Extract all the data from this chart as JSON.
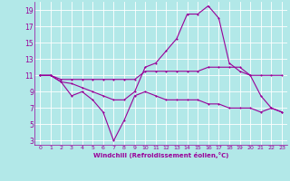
{
  "xlabel": "Windchill (Refroidissement éolien,°C)",
  "bg_color": "#b2e8e8",
  "line_color": "#990099",
  "grid_color": "#ffffff",
  "xlim": [
    -0.5,
    23.5
  ],
  "ylim": [
    2.5,
    20.0
  ],
  "yticks": [
    3,
    5,
    7,
    9,
    11,
    13,
    15,
    17,
    19
  ],
  "xticks": [
    0,
    1,
    2,
    3,
    4,
    5,
    6,
    7,
    8,
    9,
    10,
    11,
    12,
    13,
    14,
    15,
    16,
    17,
    18,
    19,
    20,
    21,
    22,
    23
  ],
  "line1_x": [
    0,
    1,
    2,
    3,
    4,
    5,
    6,
    7,
    8,
    9,
    10,
    11,
    12,
    13,
    14,
    15,
    16,
    17,
    18,
    19,
    20,
    21,
    22,
    23
  ],
  "line1_y": [
    11,
    11,
    10.5,
    10.5,
    10.5,
    10.5,
    10.5,
    10.5,
    10.5,
    10.5,
    11.5,
    11.5,
    11.5,
    11.5,
    11.5,
    11.5,
    12.0,
    12.0,
    12.0,
    12.0,
    11.0,
    11.0,
    11.0,
    11.0
  ],
  "line2_x": [
    0,
    1,
    2,
    3,
    4,
    5,
    6,
    7,
    8,
    9,
    10,
    11,
    12,
    13,
    14,
    15,
    16,
    17,
    18,
    19,
    20,
    21,
    22,
    23
  ],
  "line2_y": [
    11,
    11,
    10.2,
    8.5,
    9,
    8,
    6.5,
    3,
    5.5,
    8.5,
    9,
    8.5,
    8,
    8,
    8,
    8,
    7.5,
    7.5,
    7,
    7,
    7,
    6.5,
    7,
    6.5
  ],
  "line3_x": [
    0,
    1,
    2,
    3,
    4,
    5,
    6,
    7,
    8,
    9,
    10,
    11,
    12,
    13,
    14,
    15,
    16,
    17,
    18,
    19,
    20,
    21,
    22,
    23
  ],
  "line3_y": [
    11,
    11,
    10.2,
    10,
    9.5,
    9,
    8.5,
    8,
    8,
    9,
    12,
    12.5,
    14,
    15.5,
    18.5,
    18.5,
    19.5,
    18,
    12.5,
    11.5,
    11,
    8.5,
    7,
    6.5
  ]
}
